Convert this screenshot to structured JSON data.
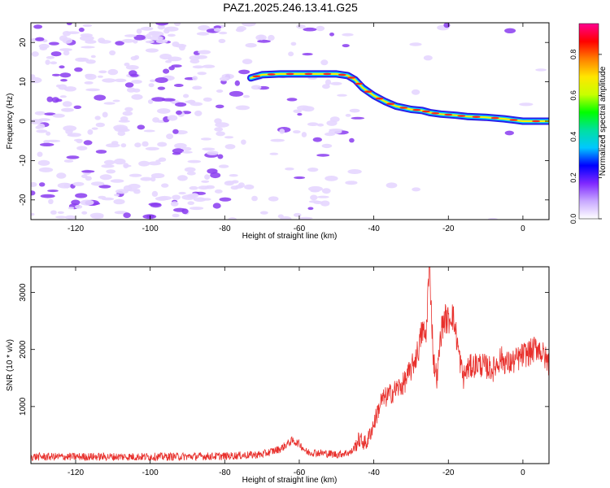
{
  "title": "PAZ1.2025.246.13.41.G25",
  "colors": {
    "snr_line": "#e8302c",
    "ridge_outer": "#2a1ee8",
    "ridge_mid": "#00d0ff",
    "ridge_inner": "#ffee00",
    "ridge_core": "#ff2a1a",
    "noise_light": "#e6d6ff",
    "noise_dark": "#8a3cf0",
    "colorbar_stops": [
      "#ffffff",
      "#c8a8ff",
      "#7f28ff",
      "#0000ff",
      "#00c8ff",
      "#00e0a0",
      "#00ff00",
      "#c8ff00",
      "#ffe600",
      "#ff8000",
      "#ff0000",
      "#ff0090"
    ]
  },
  "chart_data": [
    {
      "type": "heatmap",
      "title": "PAZ1.2025.246.13.41.G25",
      "xlabel": "Height of straight line (km)",
      "ylabel": "Frequency (Hz)",
      "xlim": [
        -132,
        7
      ],
      "ylim": [
        -25,
        25
      ],
      "xticks": [
        -120,
        -100,
        -80,
        -60,
        -40,
        -20,
        0
      ],
      "yticks": [
        -20,
        -10,
        0,
        10,
        20
      ],
      "colorbar": {
        "label": "Normalized spectral amplitude",
        "range": [
          0,
          0.95
        ],
        "ticks": [
          "0.0",
          "0.2",
          "0.4",
          "0.6",
          "0.8"
        ]
      },
      "ridge": {
        "x": [
          -73,
          -70,
          -65,
          -60,
          -55,
          -50,
          -47,
          -45,
          -43,
          -40,
          -37,
          -34,
          -30,
          -27,
          -25,
          -22,
          -18,
          -15,
          -10,
          -5,
          0,
          7
        ],
        "y": [
          11,
          11.8,
          12,
          12,
          12,
          12,
          11.6,
          10.5,
          8.5,
          6.5,
          5,
          3.8,
          3,
          2.7,
          2.2,
          1.8,
          1.5,
          1.2,
          1,
          0.6,
          0,
          0
        ]
      }
    },
    {
      "type": "line",
      "xlabel": "Height of straight line (km)",
      "ylabel": "SNR (10 * v/v)",
      "xlim": [
        -132,
        7
      ],
      "ylim": [
        0,
        3450
      ],
      "xticks": [
        -120,
        -100,
        -80,
        -60,
        -40,
        -20,
        0
      ],
      "yticks": [
        1000,
        2000,
        3000
      ],
      "series": [
        {
          "x": [
            -132,
            -120,
            -100,
            -80,
            -70,
            -65,
            -62,
            -60,
            -58,
            -55,
            -50,
            -46,
            -44,
            -42,
            -40,
            -38,
            -35,
            -32,
            -30,
            -28,
            -27,
            -26,
            -25.5,
            -25,
            -24,
            -23,
            -22,
            -21,
            -20,
            -19,
            -18,
            -17,
            -16,
            -15,
            -14,
            -12,
            -10,
            -8,
            -6,
            -4,
            -2,
            0,
            2,
            4,
            6,
            7
          ],
          "values": [
            120,
            120,
            120,
            130,
            160,
            260,
            400,
            350,
            200,
            190,
            160,
            200,
            420,
            350,
            700,
            1100,
            1250,
            1400,
            1650,
            2000,
            2350,
            2200,
            3000,
            3450,
            1800,
            1500,
            2300,
            2550,
            2500,
            2650,
            2300,
            1850,
            1500,
            1650,
            1700,
            1750,
            1700,
            1650,
            1850,
            1750,
            1800,
            1900,
            1950,
            2050,
            1850,
            1750
          ]
        }
      ]
    }
  ]
}
